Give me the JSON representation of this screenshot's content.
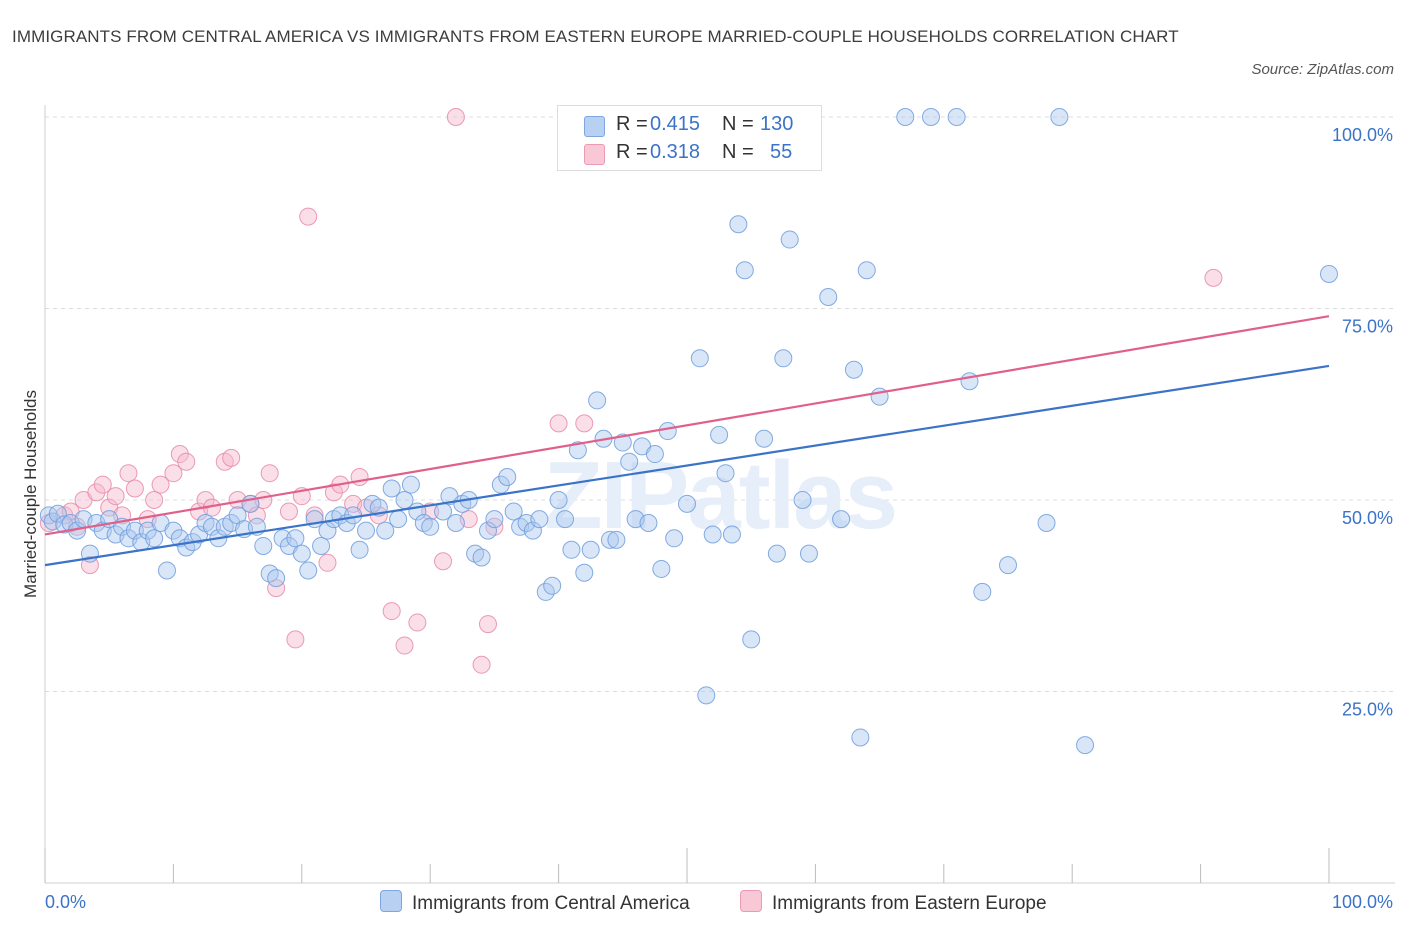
{
  "title": "IMMIGRANTS FROM CENTRAL AMERICA VS IMMIGRANTS FROM EASTERN EUROPE MARRIED-COUPLE HOUSEHOLDS CORRELATION CHART",
  "source": "Source: ZipAtlas.com",
  "colors": {
    "blue": "#3b73c8",
    "blue_fill": "#aac8f0",
    "pink": "#e0608a",
    "pink_fill": "#f5b8cb",
    "axis_text": "#3b73c8"
  },
  "legend_top": {
    "blue": {
      "r_label": "R =",
      "r_value": "0.415",
      "n_label": "N =",
      "n_value": "130"
    },
    "pink": {
      "r_label": "R =",
      "r_value": "0.318",
      "n_label": "N =",
      "n_value": "55"
    }
  },
  "chart_data": {
    "type": "scatter",
    "title": "IMMIGRANTS FROM CENTRAL AMERICA VS IMMIGRANTS FROM EASTERN EUROPE MARRIED-COUPLE HOUSEHOLDS CORRELATION CHART",
    "xlabel": "",
    "ylabel": "Married-couple Households",
    "xlim": [
      0,
      100
    ],
    "ylim": [
      0,
      100
    ],
    "x_tick_labels": [
      "0.0%",
      "100.0%"
    ],
    "y_ticks": [
      25,
      50,
      75,
      100
    ],
    "y_tick_labels": [
      "25.0%",
      "50.0%",
      "75.0%",
      "100.0%"
    ],
    "watermark": "ZIPatlas",
    "series": [
      {
        "name": "Immigrants from Central America",
        "color": "#3b73c8",
        "R": 0.415,
        "N": 130,
        "trend": {
          "x0": 0,
          "y0": 41.5,
          "x1": 100,
          "y1": 67.5
        },
        "points": [
          [
            0.3,
            48
          ],
          [
            0.6,
            47.2
          ],
          [
            1,
            48.2
          ],
          [
            1.5,
            46.8
          ],
          [
            2,
            47
          ],
          [
            2.5,
            46
          ],
          [
            3,
            47.5
          ],
          [
            3.5,
            43
          ],
          [
            4,
            47
          ],
          [
            4.5,
            46
          ],
          [
            5,
            47.5
          ],
          [
            5.5,
            45.5
          ],
          [
            6,
            46.5
          ],
          [
            6.5,
            45
          ],
          [
            7,
            46
          ],
          [
            7.5,
            44.5
          ],
          [
            8,
            46
          ],
          [
            8.5,
            45
          ],
          [
            9,
            47
          ],
          [
            9.5,
            40.8
          ],
          [
            10,
            46
          ],
          [
            10.5,
            45
          ],
          [
            11,
            43.8
          ],
          [
            11.5,
            44.5
          ],
          [
            12,
            45.5
          ],
          [
            12.5,
            47
          ],
          [
            13,
            46.5
          ],
          [
            13.5,
            45
          ],
          [
            14,
            46.5
          ],
          [
            14.5,
            47
          ],
          [
            15,
            48
          ],
          [
            15.5,
            46.2
          ],
          [
            16,
            49.5
          ],
          [
            16.5,
            46.5
          ],
          [
            17,
            44
          ],
          [
            17.5,
            40.4
          ],
          [
            18,
            39.8
          ],
          [
            18.5,
            45
          ],
          [
            19,
            44
          ],
          [
            19.5,
            45
          ],
          [
            20,
            43
          ],
          [
            20.5,
            40.8
          ],
          [
            21,
            47.5
          ],
          [
            21.5,
            44
          ],
          [
            22,
            46
          ],
          [
            22.5,
            47.5
          ],
          [
            23,
            48
          ],
          [
            23.5,
            47
          ],
          [
            24,
            48
          ],
          [
            24.5,
            43.5
          ],
          [
            25,
            46
          ],
          [
            25.5,
            49.5
          ],
          [
            26,
            49
          ],
          [
            26.5,
            46
          ],
          [
            27,
            51.5
          ],
          [
            27.5,
            47.5
          ],
          [
            28,
            50
          ],
          [
            28.5,
            52
          ],
          [
            29,
            48.5
          ],
          [
            29.5,
            47
          ],
          [
            30,
            46.5
          ],
          [
            31,
            48.5
          ],
          [
            31.5,
            50.5
          ],
          [
            32,
            47
          ],
          [
            32.5,
            49.5
          ],
          [
            33,
            50
          ],
          [
            33.5,
            43
          ],
          [
            34,
            42.5
          ],
          [
            34.5,
            46
          ],
          [
            35,
            47.5
          ],
          [
            35.5,
            52
          ],
          [
            36,
            53
          ],
          [
            36.5,
            48.5
          ],
          [
            37,
            46.5
          ],
          [
            37.5,
            47
          ],
          [
            38,
            46
          ],
          [
            38.5,
            47.5
          ],
          [
            39,
            38
          ],
          [
            39.5,
            38.8
          ],
          [
            40,
            50
          ],
          [
            40.5,
            47.5
          ],
          [
            41,
            43.5
          ],
          [
            41.5,
            56.5
          ],
          [
            42,
            40.5
          ],
          [
            42.5,
            43.5
          ],
          [
            43,
            63
          ],
          [
            43.5,
            58
          ],
          [
            44,
            44.8
          ],
          [
            44.5,
            44.8
          ],
          [
            45,
            57.5
          ],
          [
            45.5,
            55
          ],
          [
            46,
            47.5
          ],
          [
            46.5,
            57
          ],
          [
            47,
            47
          ],
          [
            47.5,
            56
          ],
          [
            48,
            41
          ],
          [
            48.5,
            59
          ],
          [
            49,
            45
          ],
          [
            50,
            49.5
          ],
          [
            51,
            68.5
          ],
          [
            51.5,
            24.5
          ],
          [
            52,
            45.5
          ],
          [
            52.5,
            58.5
          ],
          [
            53,
            53.5
          ],
          [
            53.5,
            45.5
          ],
          [
            54,
            86
          ],
          [
            54.5,
            80
          ],
          [
            55,
            31.8
          ],
          [
            56,
            58
          ],
          [
            57,
            43
          ],
          [
            57.5,
            68.5
          ],
          [
            58,
            84
          ],
          [
            59,
            50
          ],
          [
            59.5,
            43
          ],
          [
            61,
            76.5
          ],
          [
            62,
            47.5
          ],
          [
            63,
            67
          ],
          [
            63.5,
            19
          ],
          [
            64,
            80
          ],
          [
            65,
            63.5
          ],
          [
            67,
            100
          ],
          [
            69,
            100
          ],
          [
            71,
            100
          ],
          [
            72,
            65.5
          ],
          [
            73,
            38
          ],
          [
            75,
            41.5
          ],
          [
            78,
            47
          ],
          [
            79,
            100
          ],
          [
            81,
            18
          ],
          [
            100,
            79.5
          ]
        ]
      },
      {
        "name": "Immigrants from Eastern Europe",
        "color": "#e0608a",
        "R": 0.318,
        "N": 55,
        "trend": {
          "x0": 0,
          "y0": 45.5,
          "x1": 100,
          "y1": 74
        },
        "points": [
          [
            0.3,
            47
          ],
          [
            1.5,
            48
          ],
          [
            2,
            48.5
          ],
          [
            2.5,
            46.5
          ],
          [
            3,
            50
          ],
          [
            3.5,
            41.5
          ],
          [
            4,
            51
          ],
          [
            4.5,
            52
          ],
          [
            5,
            49
          ],
          [
            5.5,
            50.5
          ],
          [
            6,
            48
          ],
          [
            6.5,
            53.5
          ],
          [
            7,
            51.5
          ],
          [
            8,
            47.5
          ],
          [
            8.5,
            50
          ],
          [
            9,
            52
          ],
          [
            10,
            53.5
          ],
          [
            10.5,
            56
          ],
          [
            11,
            55
          ],
          [
            12,
            48.5
          ],
          [
            12.5,
            50
          ],
          [
            13,
            49
          ],
          [
            14,
            55
          ],
          [
            14.5,
            55.5
          ],
          [
            15,
            50
          ],
          [
            16,
            49.5
          ],
          [
            16.5,
            48
          ],
          [
            17,
            50
          ],
          [
            17.5,
            53.5
          ],
          [
            18,
            38.5
          ],
          [
            19,
            48.5
          ],
          [
            19.5,
            31.8
          ],
          [
            20,
            50.5
          ],
          [
            20.5,
            87
          ],
          [
            21,
            48
          ],
          [
            22,
            41.8
          ],
          [
            22.5,
            51
          ],
          [
            23,
            52
          ],
          [
            24,
            49.5
          ],
          [
            24.5,
            53
          ],
          [
            25,
            49
          ],
          [
            26,
            48
          ],
          [
            27,
            35.5
          ],
          [
            28,
            31
          ],
          [
            29,
            34
          ],
          [
            30,
            48.5
          ],
          [
            31,
            42
          ],
          [
            32,
            100
          ],
          [
            33,
            47.5
          ],
          [
            34,
            28.5
          ],
          [
            34.5,
            33.8
          ],
          [
            35,
            46.5
          ],
          [
            40,
            60
          ],
          [
            42,
            60
          ],
          [
            91,
            79
          ]
        ]
      }
    ]
  },
  "bottom_legend": [
    "Immigrants from Central America",
    "Immigrants from Eastern Europe"
  ]
}
